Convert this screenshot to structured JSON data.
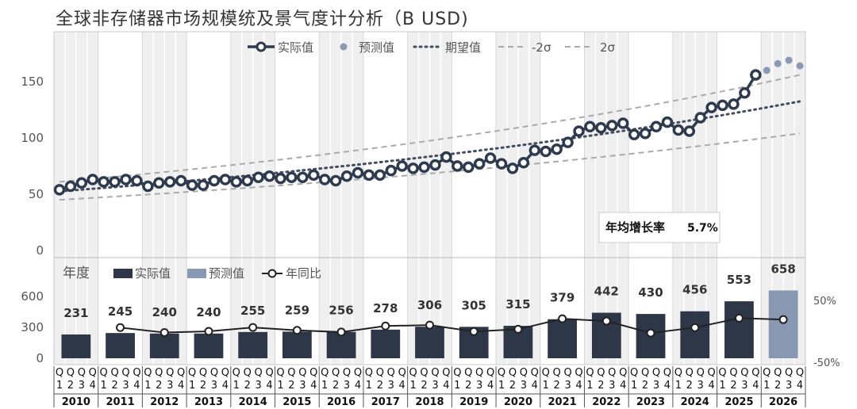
{
  "title": "全球非存储器市场规模统及景气度计分析（B USD)",
  "chart_data": [
    {
      "type": "line",
      "y_ticks": [
        "0",
        "50",
        "100",
        "150"
      ],
      "ylim": [
        0,
        185
      ],
      "legend": {
        "actual": "实际值",
        "forecast": "预测值",
        "expected": "期望值",
        "minus2sigma": "-2σ",
        "plus2sigma": "2σ",
        "placement": "top-center"
      },
      "quarterly_actual": [
        54,
        57,
        60,
        63,
        61,
        61,
        63,
        62,
        57,
        60,
        61,
        62,
        58,
        58,
        62,
        63,
        61,
        62,
        65,
        66,
        64,
        65,
        65,
        67,
        63,
        62,
        66,
        69,
        67,
        67,
        71,
        75,
        73,
        74,
        76,
        83,
        75,
        74,
        77,
        82,
        77,
        73,
        78,
        89,
        88,
        90,
        96,
        106,
        110,
        109,
        111,
        113,
        103,
        104,
        110,
        114,
        107,
        106,
        118,
        127,
        129,
        130,
        140,
        156
      ],
      "quarterly_forecast": [
        160,
        166,
        169,
        164
      ],
      "expected_start": 52.6,
      "growth_rate_quarterly": 0.01388,
      "sigma_band_start": [
        45,
        61
      ],
      "sigma_band_end": [
        104,
        156
      ],
      "cagr_label": "年均增长率",
      "cagr_value": "5.7%",
      "alternating_year_shading": true
    },
    {
      "type": "bar",
      "header": "年度",
      "legend": {
        "actual": "实际值",
        "forecast": "预测值",
        "yoy": "年同比"
      },
      "categories": [
        "2010",
        "2011",
        "2012",
        "2013",
        "2014",
        "2015",
        "2016",
        "2017",
        "2018",
        "2019",
        "2020",
        "2021",
        "2022",
        "2023",
        "2024",
        "2025",
        "2026"
      ],
      "values": [
        231,
        245,
        240,
        240,
        255,
        259,
        256,
        278,
        306,
        305,
        315,
        379,
        442,
        430,
        456,
        553,
        658
      ],
      "value_labels": [
        "231",
        "245",
        "240",
        "240",
        "255",
        "259",
        "256",
        "278",
        "306",
        "305",
        "315",
        "379",
        "442",
        "430",
        "456",
        "553",
        "658"
      ],
      "forecast_index": [
        16
      ],
      "yoy_percent": [
        null,
        6.1,
        -2.0,
        0.0,
        6.3,
        1.6,
        -1.2,
        8.6,
        10.1,
        -0.3,
        3.3,
        20.3,
        16.6,
        -2.7,
        6.0,
        21.3,
        19.0
      ],
      "y_ticks": [
        "0",
        "300",
        "600"
      ],
      "ylim": [
        0,
        700
      ],
      "y2_ticks": [
        "50%",
        "-50%"
      ],
      "y2lim": [
        -60,
        60
      ]
    }
  ],
  "axis": {
    "quarter_prefix": "Q",
    "quarters": [
      "1",
      "2",
      "3",
      "4"
    ],
    "years": [
      "2010",
      "2011",
      "2012",
      "2013",
      "2014",
      "2015",
      "2016",
      "2017",
      "2018",
      "2019",
      "2020",
      "2021",
      "2022",
      "2023",
      "2024",
      "2025",
      "2026"
    ]
  },
  "colors": {
    "actual": "#2e3a4e",
    "forecast": "#8a9ab4",
    "expected": "#444d60",
    "band": "#aaaaaa",
    "yoy_line": "#222222",
    "shade": "#efefef",
    "bar_actual": "#2d3748",
    "bar_forecast": "#8897b2"
  }
}
